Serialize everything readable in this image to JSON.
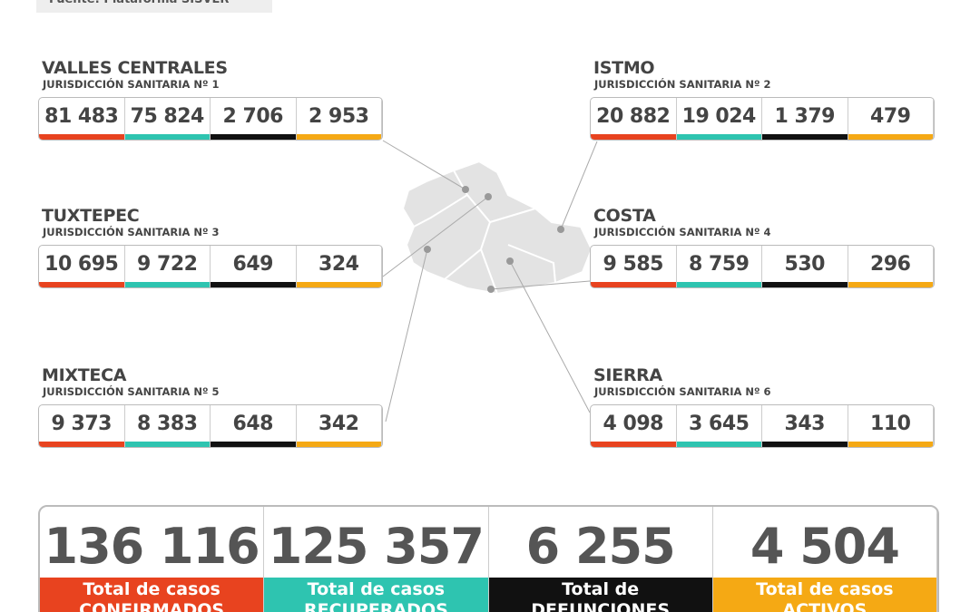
{
  "source": "Fuente: Plataforma SISVER",
  "regions": [
    {
      "name": "VALLES CENTRALES",
      "subtitle": "JURISDICCIÓN SANITARIA Nº 1",
      "values": [
        "81 483",
        "75 824",
        "2 706",
        "2 953"
      ]
    },
    {
      "name": "ISTMO",
      "subtitle": "JURISDICCIÓN SANITARIA Nº 2",
      "values": [
        "20 882",
        "19 024",
        "1 379",
        "479"
      ]
    },
    {
      "name": "TUXTEPEC",
      "subtitle": "JURISDICCIÓN SANITARIA Nº 3",
      "values": [
        "10 695",
        "9 722",
        "649",
        "324"
      ]
    },
    {
      "name": "COSTA",
      "subtitle": "JURISDICCIÓN SANITARIA Nº 4",
      "values": [
        "9 585",
        "8 759",
        "530",
        "296"
      ]
    },
    {
      "name": "MIXTECA",
      "subtitle": "JURISDICCIÓN SANITARIA Nº 5",
      "values": [
        "9 373",
        "8 383",
        "648",
        "342"
      ]
    },
    {
      "name": "SIERRA",
      "subtitle": "JURISDICCIÓN SANITARIA Nº 6",
      "values": [
        "4 098",
        "3 645",
        "343",
        "110"
      ]
    }
  ],
  "totals": [
    {
      "value": "136 116",
      "label": [
        "Total de casos",
        "CONFIRMADOS"
      ]
    },
    {
      "value": "125 357",
      "label": [
        "Total de casos",
        "RECUPERADOS"
      ]
    },
    {
      "value": "6 255",
      "label": [
        "Total de",
        "DEFUNCIONES"
      ]
    },
    {
      "value": "4 504",
      "label": [
        "Total de casos",
        "ACTIVOS"
      ]
    }
  ]
}
